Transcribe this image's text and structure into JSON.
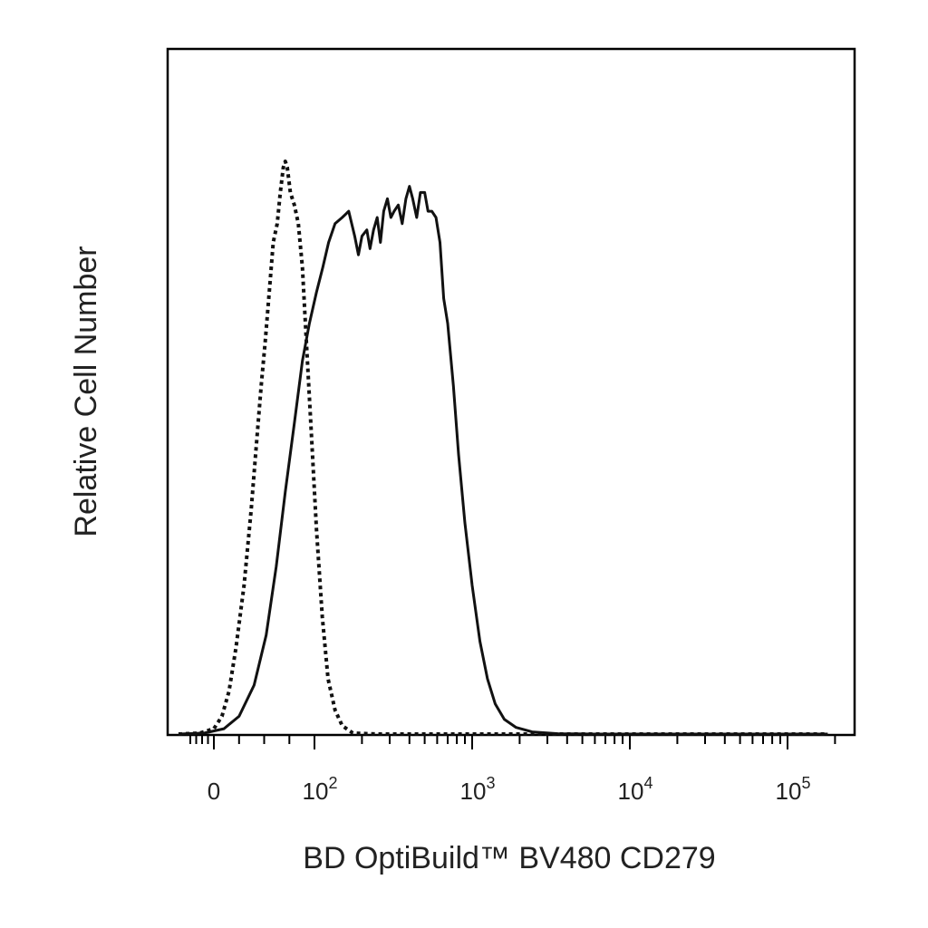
{
  "chart_data": {
    "type": "line",
    "xlabel": "BD OptiBuild™ BV480 CD279",
    "ylabel": "Relative Cell Number",
    "x_scale": "biexponential",
    "x_tick_labels": [
      {
        "value": 0,
        "base": "0",
        "exp": ""
      },
      {
        "value": 100,
        "base": "10",
        "exp": "2"
      },
      {
        "value": 1000,
        "base": "10",
        "exp": "3"
      },
      {
        "value": 10000,
        "base": "10",
        "exp": "4"
      },
      {
        "value": 100000,
        "base": "10",
        "exp": "5"
      }
    ],
    "xlim": [
      -200,
      200000
    ],
    "ylim": [
      0,
      100
    ],
    "grid": false,
    "legend": "none",
    "series": [
      {
        "style": "dotted",
        "color": "#111111",
        "points": [
          [
            -150,
            0
          ],
          [
            -60,
            0.3
          ],
          [
            0,
            1
          ],
          [
            8,
            3
          ],
          [
            15,
            7
          ],
          [
            22,
            14
          ],
          [
            30,
            24
          ],
          [
            37,
            36
          ],
          [
            42,
            46
          ],
          [
            47,
            56
          ],
          [
            51,
            63
          ],
          [
            56,
            73
          ],
          [
            59,
            79
          ],
          [
            63,
            82
          ],
          [
            66,
            87
          ],
          [
            69,
            91
          ],
          [
            71,
            92
          ],
          [
            73,
            91
          ],
          [
            76,
            87
          ],
          [
            80,
            85
          ],
          [
            84,
            82
          ],
          [
            88,
            75
          ],
          [
            92,
            63
          ],
          [
            97,
            48
          ],
          [
            103,
            33
          ],
          [
            112,
            19
          ],
          [
            122,
            9
          ],
          [
            135,
            4
          ],
          [
            150,
            1.5
          ],
          [
            175,
            0.3
          ],
          [
            250,
            0
          ],
          [
            100000,
            0
          ],
          [
            180000,
            0
          ]
        ]
      },
      {
        "style": "solid",
        "color": "#111111",
        "points": [
          [
            -150,
            0
          ],
          [
            -40,
            0.3
          ],
          [
            10,
            1
          ],
          [
            25,
            3
          ],
          [
            40,
            8
          ],
          [
            52,
            16
          ],
          [
            62,
            27
          ],
          [
            71,
            39
          ],
          [
            80,
            50
          ],
          [
            88,
            60
          ],
          [
            95,
            66
          ],
          [
            103,
            71
          ],
          [
            113,
            75
          ],
          [
            123,
            79
          ],
          [
            135,
            82
          ],
          [
            150,
            83
          ],
          [
            165,
            84
          ],
          [
            180,
            80
          ],
          [
            190,
            77
          ],
          [
            200,
            80
          ],
          [
            215,
            81
          ],
          [
            225,
            78
          ],
          [
            237,
            81
          ],
          [
            250,
            83
          ],
          [
            262,
            79
          ],
          [
            275,
            84
          ],
          [
            290,
            86
          ],
          [
            305,
            83
          ],
          [
            320,
            84
          ],
          [
            340,
            85
          ],
          [
            360,
            82
          ],
          [
            380,
            86
          ],
          [
            400,
            88
          ],
          [
            420,
            86
          ],
          [
            445,
            83
          ],
          [
            470,
            87
          ],
          [
            500,
            87
          ],
          [
            525,
            84
          ],
          [
            555,
            84
          ],
          [
            590,
            83
          ],
          [
            625,
            79
          ],
          [
            660,
            70
          ],
          [
            700,
            66
          ],
          [
            760,
            56
          ],
          [
            820,
            45
          ],
          [
            900,
            34
          ],
          [
            1000,
            24
          ],
          [
            1120,
            15
          ],
          [
            1250,
            9
          ],
          [
            1400,
            5
          ],
          [
            1600,
            2.5
          ],
          [
            1900,
            1.2
          ],
          [
            2400,
            0.5
          ],
          [
            3500,
            0.2
          ],
          [
            6000,
            0
          ],
          [
            100000,
            0
          ],
          [
            180000,
            0
          ]
        ]
      }
    ]
  }
}
